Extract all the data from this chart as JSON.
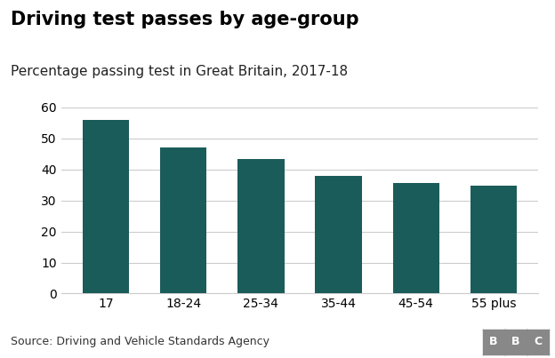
{
  "title": "Driving test passes by age-group",
  "subtitle": "Percentage passing test in Great Britain, 2017-18",
  "categories": [
    "17",
    "18-24",
    "25-34",
    "35-44",
    "45-54",
    "55 plus"
  ],
  "values": [
    56,
    47,
    43.5,
    38,
    35.5,
    34.8
  ],
  "bar_color": "#1a5c5a",
  "ylim": [
    0,
    60
  ],
  "yticks": [
    0,
    10,
    20,
    30,
    40,
    50,
    60
  ],
  "source_text": "Source: Driving and Vehicle Standards Agency",
  "bbc_text": "BBC",
  "background_color": "#ffffff",
  "grid_color": "#cccccc",
  "title_fontsize": 15,
  "subtitle_fontsize": 11,
  "tick_fontsize": 10,
  "source_fontsize": 9
}
